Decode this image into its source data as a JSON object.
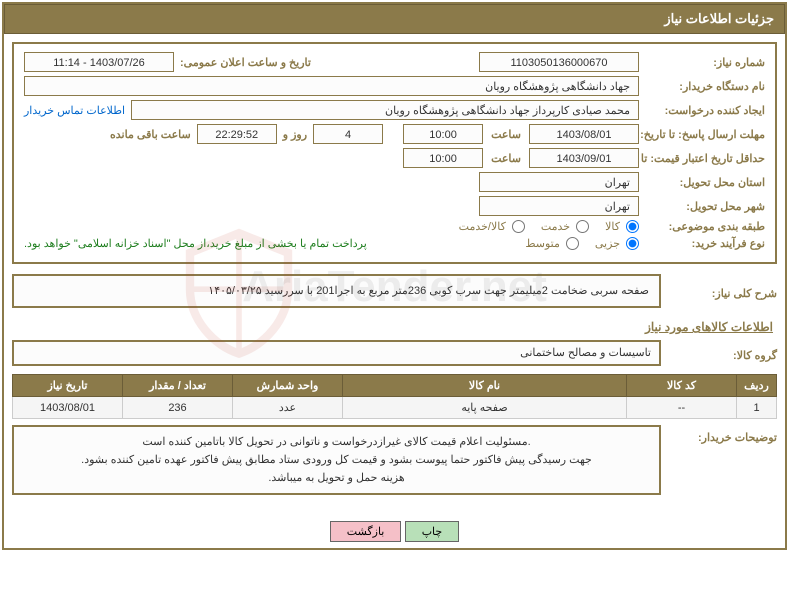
{
  "header": {
    "title": "جزئیات اطلاعات نیاز"
  },
  "fields": {
    "need_no_label": "شماره نیاز:",
    "need_no": "1103050136000670",
    "announce_label": "تاریخ و ساعت اعلان عمومی:",
    "announce_value": "1403/07/26 - 11:14",
    "buyer_org_label": "نام دستگاه خریدار:",
    "buyer_org": "جهاد دانشگاهی پژوهشگاه رویان",
    "requester_label": "ایجاد کننده درخواست:",
    "requester": "محمد صیادی کارپرداز جهاد دانشگاهی پژوهشگاه رویان",
    "buyer_contact_link": "اطلاعات تماس خریدار",
    "reply_deadline_label": "مهلت ارسال پاسخ: تا تاریخ:",
    "reply_date": "1403/08/01",
    "time_label": "ساعت",
    "reply_time": "10:00",
    "days_label_prefix": "",
    "days_left": "4",
    "days_suffix": "روز و",
    "countdown": "22:29:52",
    "remaining_suffix": "ساعت باقی مانده",
    "price_valid_label": "حداقل تاریخ اعتبار قیمت: تا تاریخ:",
    "price_date": "1403/09/01",
    "price_time": "10:00",
    "province_label": "استان محل تحویل:",
    "province": "تهران",
    "city_label": "شهر محل تحویل:",
    "city": "تهران",
    "category_label": "طبقه بندی موضوعی:",
    "cat_goods": "کالا",
    "cat_service": "خدمت",
    "cat_goods_service": "کالا/خدمت",
    "process_label": "نوع فرآیند خرید:",
    "proc_minor": "جزیی",
    "proc_medium": "متوسط",
    "payment_note": "پرداخت تمام یا بخشی از مبلغ خرید،از محل \"اسناد خزانه اسلامی\" خواهد بود."
  },
  "desc": {
    "overall_label": "شرح کلی نیاز:",
    "overall_text": "صفحه سربی ضخامت 2میلیمتر جهت سرب کوبی 236متر مربع به اجرا201 با سررسید ۱۴۰۵/۰۳/۲۵",
    "items_title": "اطلاعات کالاهای مورد نیاز",
    "group_label": "گروه کالا:",
    "group_value": "تاسیسات و مصالح ساختمانی"
  },
  "table": {
    "headers": [
      "ردیف",
      "کد کالا",
      "نام کالا",
      "واحد شمارش",
      "تعداد / مقدار",
      "تاریخ نیاز"
    ],
    "rows": [
      [
        "1",
        "--",
        "صفحه پایه",
        "عدد",
        "236",
        "1403/08/01"
      ]
    ],
    "col_widths": [
      "40px",
      "110px",
      "auto",
      "110px",
      "110px",
      "110px"
    ]
  },
  "notes": {
    "buyer_notes_label": "توضیحات خریدار:",
    "buyer_notes_text": ".مسئولیت اعلام قیمت کالای غیرازدرخواست و ناتوانی در تحویل کالا باتامین کننده است\nجهت رسیدگی پیش فاکتور حتما پیوست بشود و قیمت کل ورودی ستاد مطابق پیش فاکتور عهده تامین کننده بشود.\nهزینه حمل و تحویل به میباشد."
  },
  "buttons": {
    "print": "چاپ",
    "back": "بازگشت"
  },
  "watermark": "AriaTender.net",
  "styling": {
    "primary_color": "#8b7a4a",
    "header_bg": "#8b7a4a",
    "header_fg": "#ffffff",
    "link_color": "#0066cc",
    "green_text": "#1e7e1e",
    "table_header_bg": "#8b7a4a",
    "table_row_bg": "#f5f5f5",
    "btn_green_bg": "#b8e0b8",
    "btn_pink_bg": "#f5c0c8",
    "font_family": "Tahoma",
    "base_font_size": 12
  }
}
